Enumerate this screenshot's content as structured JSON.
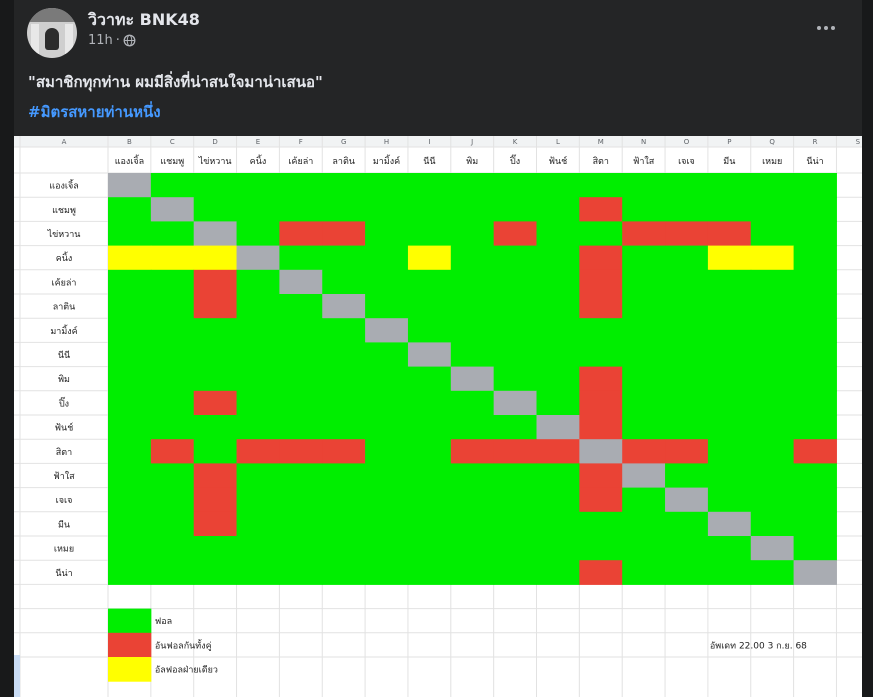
{
  "post": {
    "author": "วิวาทะ BNK48",
    "time": "11h",
    "privacy_icon": "globe-icon",
    "menu_icon": "more-options-icon",
    "text": "\"สมาชิกทุกท่าน ผมมีสิ่งที่น่าสนใจมาน่าเสนอ\"",
    "hashtag": "#มิตรสหายท่านหนึ่ง"
  },
  "colors": {
    "green": "#00ee00",
    "red": "#ea4335",
    "yellow": "#ffff00",
    "gray": "#a9acb2"
  },
  "sheet": {
    "column_letters": [
      "A",
      "B",
      "C",
      "D",
      "E",
      "F",
      "G",
      "H",
      "I",
      "J",
      "K",
      "L",
      "M",
      "N",
      "O",
      "P",
      "Q",
      "R",
      "S"
    ],
    "members": [
      "แองเจิ้ล",
      "แชมพู",
      "ไข่หวาน",
      "คนิ้ง",
      "เค้ยล่า",
      "ลาติน",
      "มามิ้งค์",
      "นีนี",
      "พิม",
      "ปิ๊ง",
      "ฟ้นช์",
      "สิตา",
      "ฟ้าใส",
      "เจเจ",
      "มีน",
      "เหมย",
      "นีน่า"
    ],
    "matrix": [
      "XGGGGGGGGGGGGGGGG",
      "GXGGGGGGGGGRGGGGG",
      "GGXGRRGGGRGGRRRGG",
      "YYYXGGGYGGGRGGYYG",
      "GGRGXGGGGGGRGGGGG",
      "GGRGGXGGGGGRGGGGG",
      "GGGGGGXGGGGGGGGGG",
      "GGGGGGGXGGGGGGGGG",
      "GGGGGGGGXGGRGGGGG",
      "GGRGGGGGGXGRGGGGG",
      "GGGGGGGGGGXRGGGGG",
      "GRGRRRGGRRRXRRGGR",
      "GGRGGGGGGGGRXGGGG",
      "GGRGGGGGGGGRGXGGG",
      "GGRGGGGGGGGGGGXGG",
      "GGGGGGGGGGGGGGGXG",
      "GGGGGGGGGGGRGGGGX"
    ],
    "legend": [
      {
        "color": "green",
        "label": "ฟอล"
      },
      {
        "color": "red",
        "label": "อันฟอลกันทั้งคู่"
      },
      {
        "color": "yellow",
        "label": "อัลฟอลฝ่ายเดียว"
      }
    ],
    "update_note": "อัพเดท 22.00 3 ก.ย. 68"
  }
}
